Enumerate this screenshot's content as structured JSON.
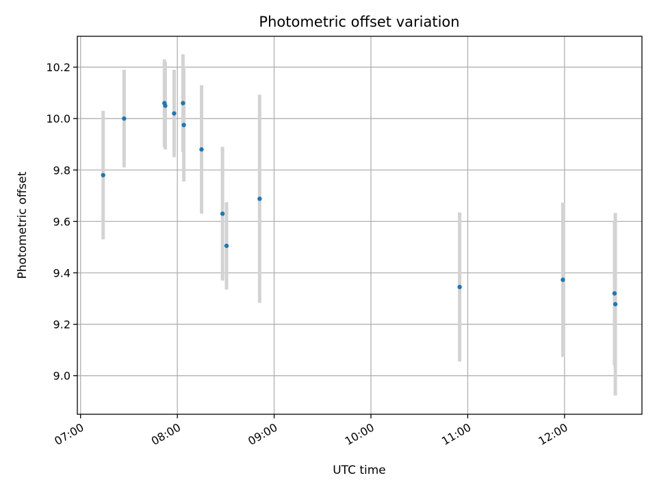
{
  "chart_data": {
    "type": "scatter",
    "title": "Photometric offset variation",
    "xlabel": "UTC time",
    "ylabel": "Photometric offset",
    "x_axis_kind": "time",
    "xlim": [
      "06:58",
      "12:48"
    ],
    "ylim": [
      8.85,
      10.32
    ],
    "x_ticks": [
      "07:00",
      "08:00",
      "09:00",
      "10:00",
      "11:00",
      "12:00"
    ],
    "y_ticks": [
      9.0,
      9.2,
      9.4,
      9.6,
      9.8,
      10.0,
      10.2
    ],
    "grid": true,
    "marker_color": "#1f77b4",
    "errorbar_color": "#d3d3d3",
    "points": [
      {
        "time": "07:14",
        "y": 9.78,
        "err": 0.25
      },
      {
        "time": "07:27",
        "y": 10.0,
        "err": 0.19
      },
      {
        "time": "07:52",
        "y": 10.06,
        "err": 0.17
      },
      {
        "time": "07:52.5",
        "y": 10.05,
        "err": 0.17
      },
      {
        "time": "07:58",
        "y": 10.02,
        "err": 0.17
      },
      {
        "time": "08:03.5",
        "y": 10.06,
        "err": 0.19
      },
      {
        "time": "08:04",
        "y": 9.975,
        "err": 0.22
      },
      {
        "time": "08:15",
        "y": 9.88,
        "err": 0.25
      },
      {
        "time": "08:28",
        "y": 9.63,
        "err": 0.26
      },
      {
        "time": "08:30.5",
        "y": 9.505,
        "err": 0.17
      },
      {
        "time": "08:51",
        "y": 9.688,
        "err": 0.405
      },
      {
        "time": "10:55",
        "y": 9.345,
        "err": 0.29
      },
      {
        "time": "11:59",
        "y": 9.373,
        "err": 0.3
      },
      {
        "time": "12:31",
        "y": 9.32,
        "err": 0.28
      },
      {
        "time": "12:31.5",
        "y": 9.278,
        "err": 0.355
      }
    ]
  }
}
